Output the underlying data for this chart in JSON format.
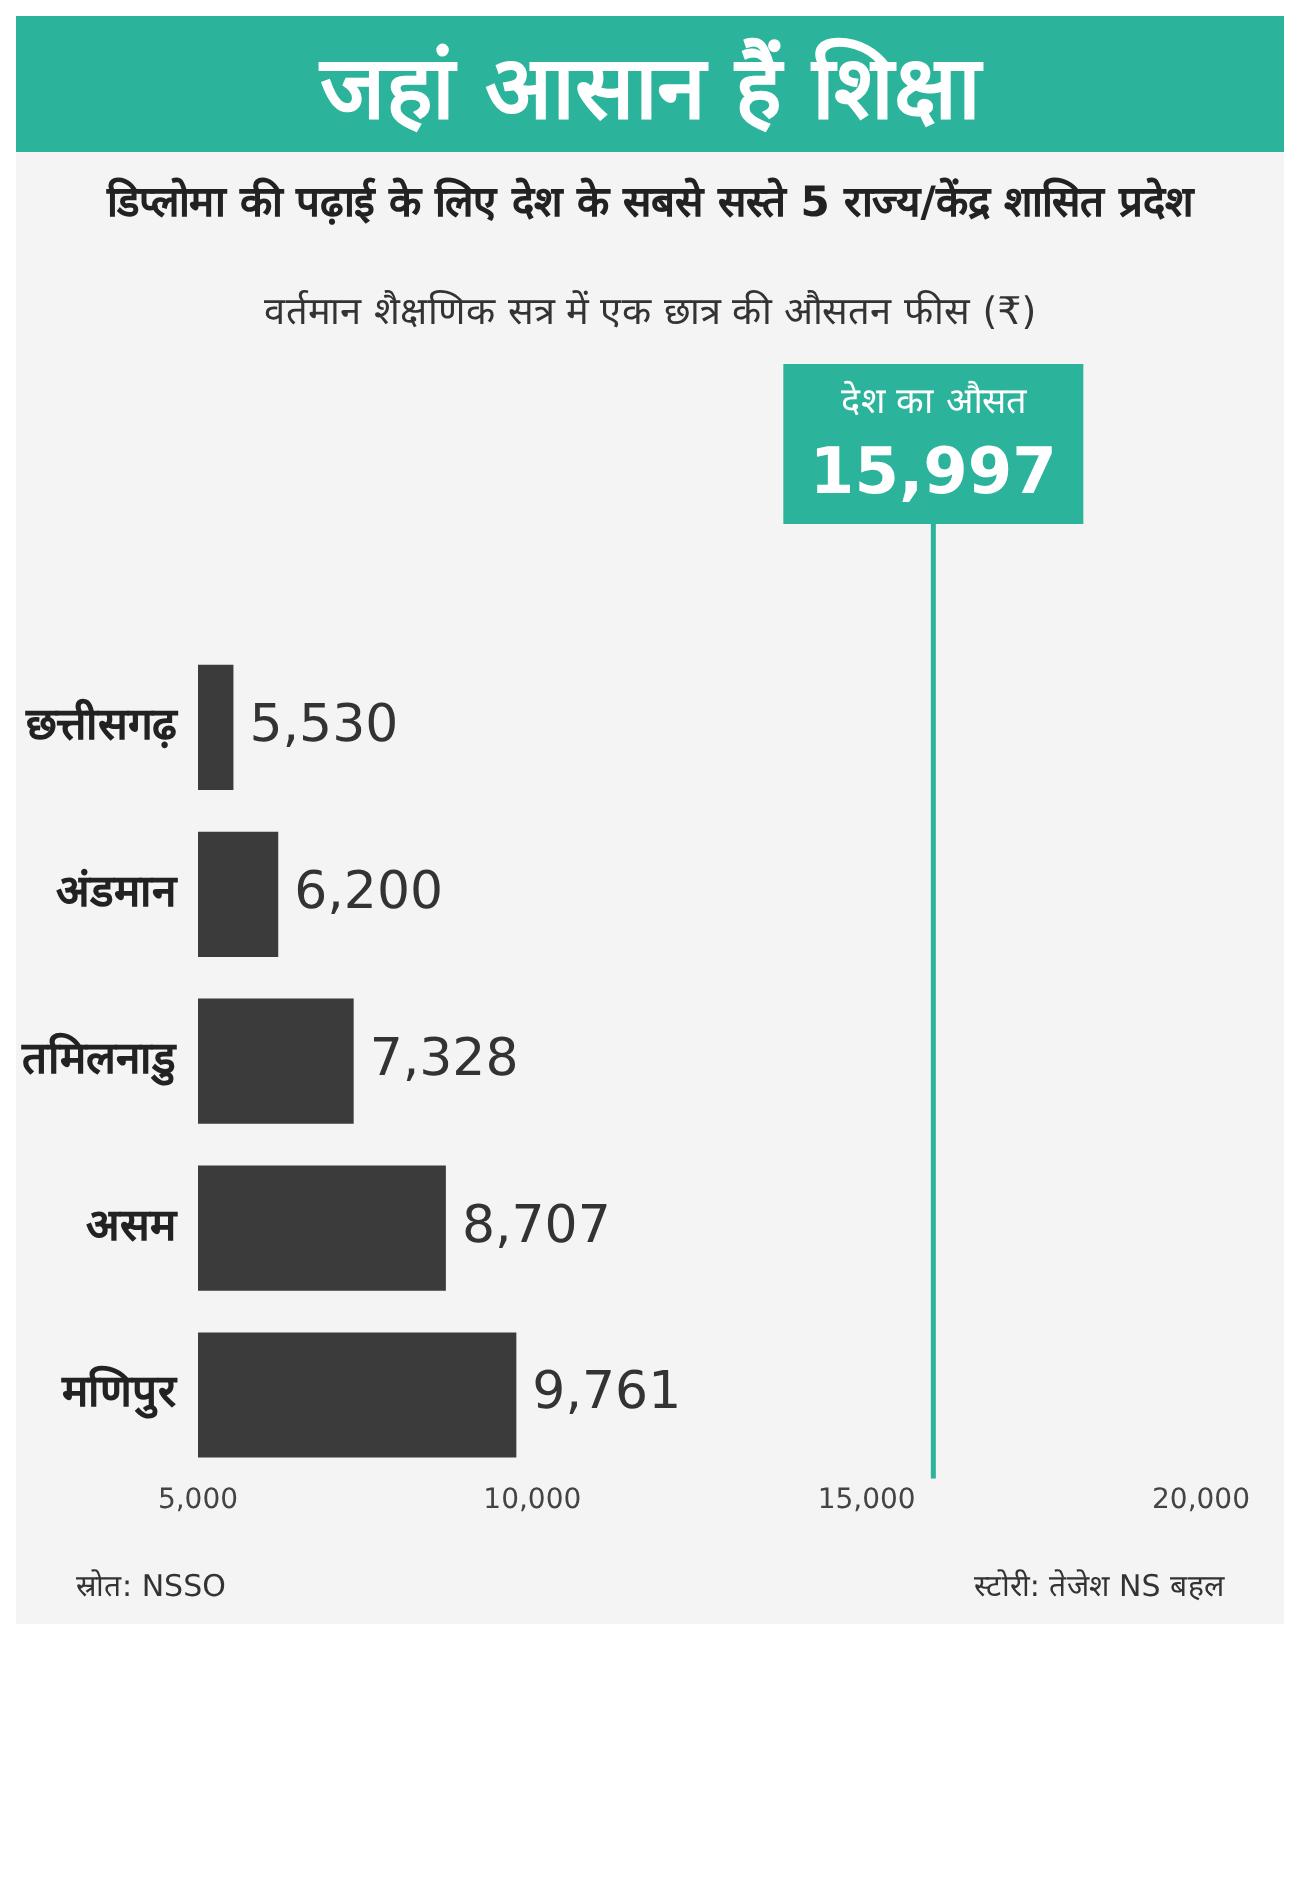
{
  "chart_data": {
    "type": "bar",
    "orientation": "horizontal",
    "title": "जहां आसान हैं शिक्षा",
    "subtitle": "डिप्लोमा की पढ़ाई के लिए देश के सबसे सस्ते 5 राज्य/केंद्र शासित प्रदेश",
    "categories": [
      "छत्तीसगढ़",
      "अंडमान",
      "तमिलनाडु",
      "असम",
      "मणिपुर"
    ],
    "values": [
      5530,
      6200,
      7328,
      8707,
      9761
    ],
    "value_labels": [
      "5,530",
      "6,200",
      "7,328",
      "8,707",
      "9,761"
    ],
    "color": "#3b3b3b",
    "xlim": [
      5000,
      20000
    ],
    "xticks": [
      {
        "value": 5000,
        "label": "5,000"
      },
      {
        "value": 10000,
        "label": "10,000"
      },
      {
        "value": 15000,
        "label": "15,000"
      },
      {
        "value": 20000,
        "label": "20,000"
      }
    ],
    "ref_lines": [
      {
        "axis": "x",
        "value": 15997,
        "color": "#2bb39b"
      }
    ],
    "grid": false,
    "legend": false,
    "annotations": [
      "वर्तमान शैक्षणिक सत्र में एक छात्र की औसतन फीस (₹)",
      "देश का औसत",
      "15,997",
      "स्रोत: NSSO",
      "स्टोरी: तेजेश NS बहल"
    ]
  }
}
